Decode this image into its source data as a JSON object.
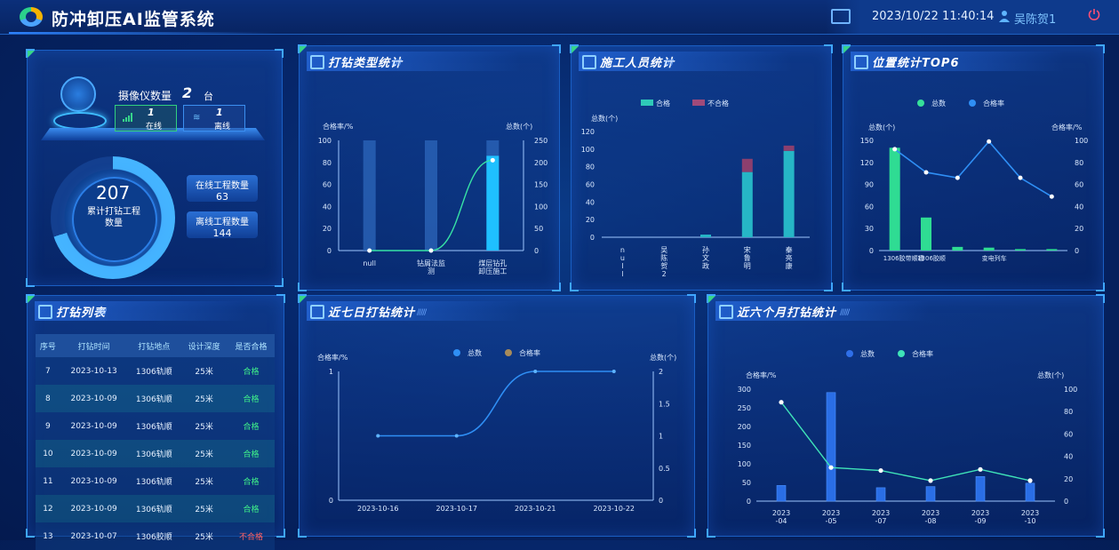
{
  "header": {
    "title": "防冲卸压AI监管系统",
    "datetime": "2023/10/22 11:40:14",
    "user": "吴陈贺1"
  },
  "colors": {
    "accent": "#3fa7ff",
    "green": "#36d58a",
    "bad": "#ff6060",
    "cyan": "#2fd6ff"
  },
  "device": {
    "camera_label": "摄像仪数量",
    "camera_count": "2",
    "camera_unit": "台",
    "online_count": "1",
    "online_label": "在线",
    "offline_count": "1",
    "offline_label": "离线",
    "total_value": "207",
    "total_label": "累计打钻工程数量",
    "online_projects_label": "在线工程数量",
    "online_projects_value": "63",
    "offline_projects_label": "离线工程数量",
    "offline_projects_value": "144"
  },
  "panels": {
    "drill_type": "打钻类型统计",
    "staff": "施工人员统计",
    "position": "位置统计TOP6",
    "list": "打钻列表",
    "seven_day": "近七日打钻统计",
    "six_month": "近六个月打钻统计"
  },
  "table": {
    "headers": [
      "序号",
      "打钻时间",
      "打钻地点",
      "设计深度",
      "是否合格"
    ],
    "rows": [
      [
        "7",
        "2023-10-13",
        "1306轨顺",
        "25米",
        "合格"
      ],
      [
        "8",
        "2023-10-09",
        "1306轨顺",
        "25米",
        "合格"
      ],
      [
        "9",
        "2023-10-09",
        "1306轨顺",
        "25米",
        "合格"
      ],
      [
        "10",
        "2023-10-09",
        "1306轨顺",
        "25米",
        "合格"
      ],
      [
        "11",
        "2023-10-09",
        "1306轨顺",
        "25米",
        "合格"
      ],
      [
        "12",
        "2023-10-09",
        "1306轨顺",
        "25米",
        "合格"
      ],
      [
        "13",
        "2023-10-07",
        "1306胶顺",
        "25米",
        "不合格"
      ]
    ]
  },
  "chart_data": [
    {
      "id": "drill_type",
      "type": "bar",
      "categories": [
        "null",
        "钻屑法监测",
        "煤层钻孔卸压施工"
      ],
      "category_labels": [
        [
          "null"
        ],
        [
          "钻屑法监",
          "测"
        ],
        [
          "煤层钻孔",
          "卸压施工"
        ]
      ],
      "series": [
        {
          "name": "总数",
          "values": [
            0,
            0,
            205
          ]
        },
        {
          "name": "合格率",
          "values": [
            0,
            0,
            86
          ]
        }
      ],
      "bar_bg_max": 100,
      "ylabel_left": "合格率/%",
      "ylabel_right": "总数(个)",
      "ylim_left": [
        0,
        100
      ],
      "ylim_right": [
        0,
        250
      ],
      "left_ticks": [
        0,
        20,
        40,
        60,
        80,
        100
      ],
      "right_ticks": [
        0,
        50,
        100,
        150,
        200,
        250
      ]
    },
    {
      "id": "staff",
      "type": "bar",
      "legend": [
        "合格",
        "不合格"
      ],
      "categories": [
        "null",
        "吴陈贺2",
        "孙文政",
        "宋鲁明",
        "秦亮康"
      ],
      "category_labels": [
        [
          "n",
          "u",
          "l",
          "l"
        ],
        [
          "吴",
          "陈",
          "贺",
          "2"
        ],
        [
          "孙",
          "文",
          "政"
        ],
        [
          "宋",
          "鲁",
          "明"
        ],
        [
          "秦",
          "亮",
          "康"
        ]
      ],
      "series": [
        {
          "name": "合格",
          "values": [
            0,
            0,
            3,
            74,
            98
          ]
        },
        {
          "name": "不合格",
          "values": [
            0,
            0,
            0,
            15,
            6
          ]
        }
      ],
      "ylabel": "总数(个)",
      "ylim": [
        0,
        120
      ],
      "ticks": [
        0,
        20,
        40,
        60,
        80,
        100,
        120
      ]
    },
    {
      "id": "position",
      "type": "bar",
      "legend": [
        "总数",
        "合格率"
      ],
      "categories": [
        "1306胶带顺槽",
        "1306胶顺",
        "",
        "变电列车",
        "",
        ""
      ],
      "series": [
        {
          "name": "总数",
          "values": [
            140,
            45,
            5,
            4,
            2,
            2
          ]
        },
        {
          "name": "合格率",
          "values": [
            92,
            71,
            66,
            99,
            66,
            49
          ]
        }
      ],
      "ylabel_left": "总数(个)",
      "ylabel_right": "合格率/%",
      "ylim_left": [
        0,
        150
      ],
      "ylim_right": [
        0,
        100
      ],
      "left_ticks": [
        0,
        30,
        60,
        90,
        120,
        150
      ],
      "right_ticks": [
        0,
        20,
        40,
        60,
        80,
        100
      ]
    },
    {
      "id": "seven_day",
      "type": "line",
      "legend": [
        "总数",
        "合格率"
      ],
      "x": [
        "2023-10-16",
        "2023-10-17",
        "2023-10-21",
        "2023-10-22"
      ],
      "series": [
        {
          "name": "总数",
          "values": [
            1,
            1,
            2,
            2
          ]
        },
        {
          "name": "合格率",
          "values": [
            0,
            0,
            0,
            0
          ]
        }
      ],
      "ylabel_left": "合格率/%",
      "ylabel_right": "总数(个)",
      "ylim_left": [
        0,
        1
      ],
      "ylim_right": [
        0,
        2
      ],
      "left_ticks": [
        0,
        1
      ],
      "right_ticks": [
        0,
        0.5,
        1,
        1.5,
        2
      ]
    },
    {
      "id": "six_month",
      "type": "bar",
      "legend": [
        "总数",
        "合格率"
      ],
      "x": [
        "2023-04",
        "2023-05",
        "2023-07",
        "2023-08",
        "2023-09",
        "2023-10"
      ],
      "x_labels": [
        [
          "2023",
          "-04"
        ],
        [
          "2023",
          "-05"
        ],
        [
          "2023",
          "-07"
        ],
        [
          "2023",
          "-08"
        ],
        [
          "2023",
          "-09"
        ],
        [
          "2023",
          "-10"
        ]
      ],
      "series": [
        {
          "name": "总数",
          "values": [
            14,
            97,
            12,
            13,
            22,
            16
          ]
        },
        {
          "name": "合格率",
          "values": [
            265,
            90,
            82,
            55,
            85,
            55
          ]
        }
      ],
      "ylabel_left": "合格率/%",
      "ylabel_right": "总数(个)",
      "ylim_left": [
        0,
        300
      ],
      "ylim_right": [
        0,
        100
      ],
      "left_ticks": [
        0,
        50,
        100,
        150,
        200,
        250,
        300
      ],
      "right_ticks": [
        0,
        20,
        40,
        60,
        80,
        100
      ]
    }
  ]
}
